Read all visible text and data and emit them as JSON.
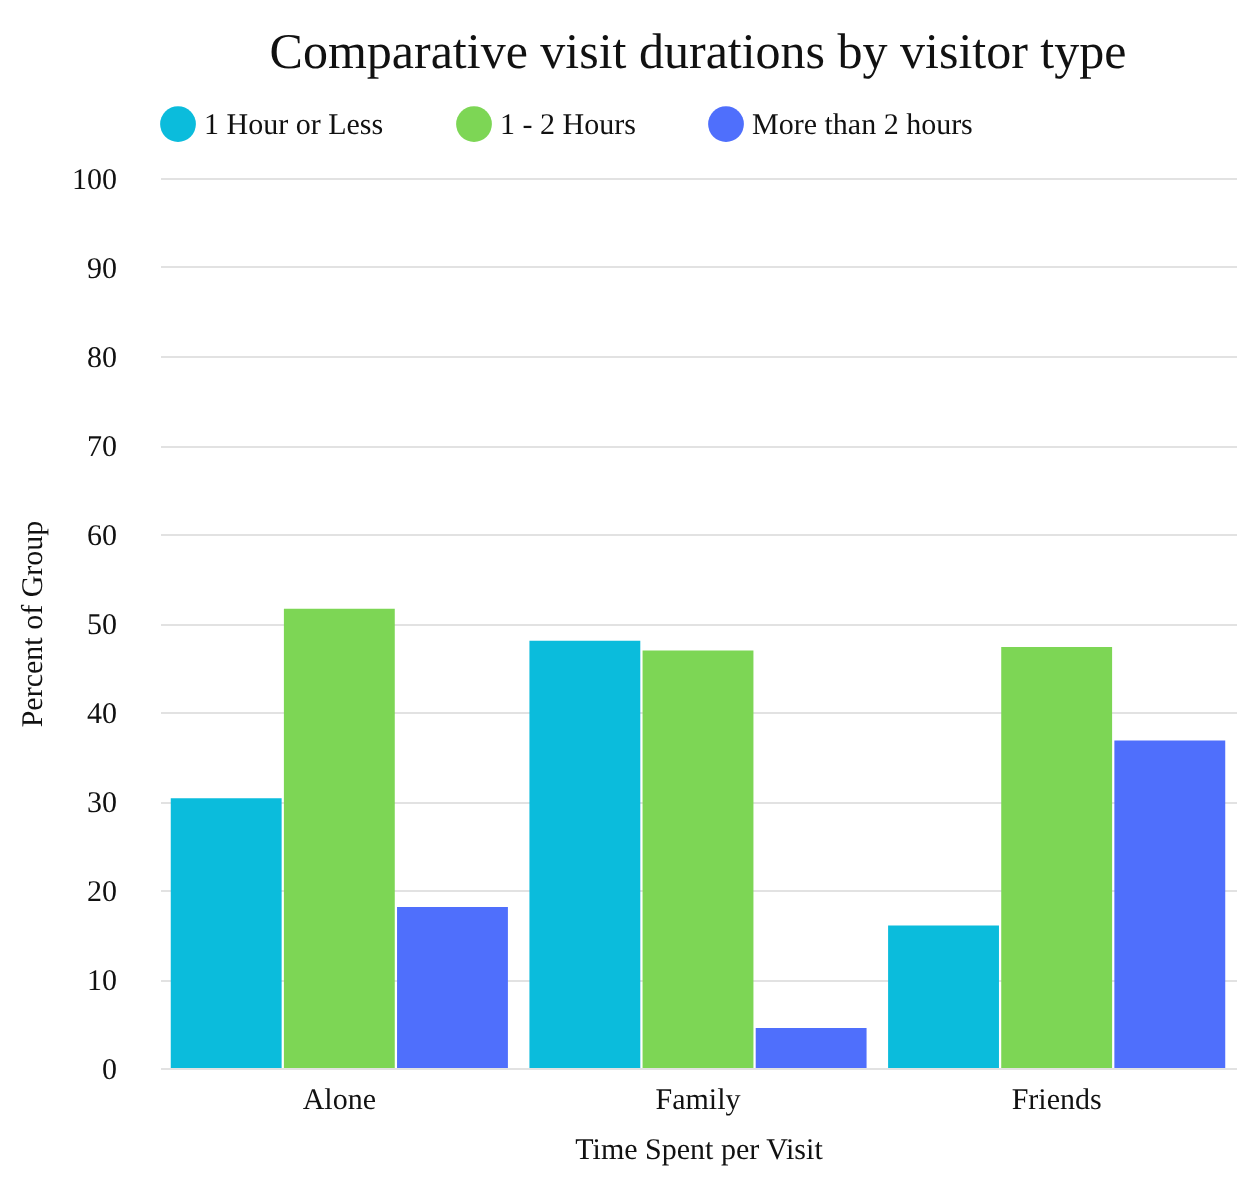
{
  "chart_data": {
    "type": "bar",
    "title": "Comparative visit durations by visitor type",
    "xlabel": "Time Spent per Visit",
    "ylabel": "Percent of Group",
    "categories": [
      "Alone",
      "Family",
      "Friends"
    ],
    "series": [
      {
        "name": "1 Hour or Less",
        "color": "#0bbcdc",
        "values": [
          30.3,
          48.0,
          16.0
        ]
      },
      {
        "name": "1 - 2 Hours",
        "color": "#7dd655",
        "values": [
          51.6,
          46.9,
          47.3
        ]
      },
      {
        "name": "More than 2 hours",
        "color": "#4f6ffc",
        "values": [
          18.1,
          4.5,
          36.8
        ]
      }
    ],
    "ylim": [
      0,
      100
    ],
    "yticks": [
      0,
      10,
      20,
      30,
      40,
      50,
      60,
      70,
      80,
      90,
      100
    ],
    "grid": "y",
    "legend": "top"
  }
}
